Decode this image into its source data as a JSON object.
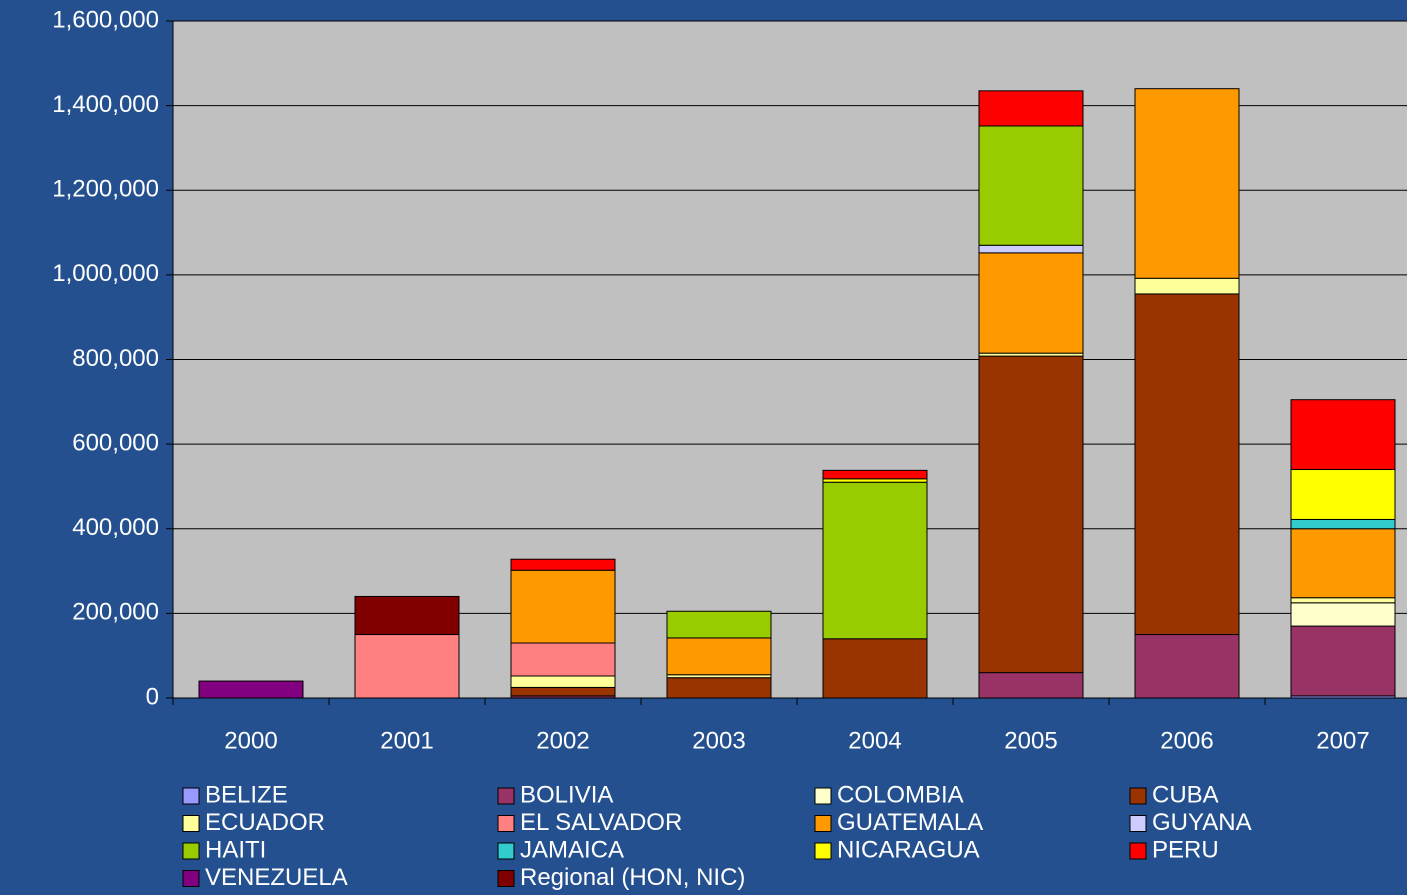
{
  "chart_data": {
    "type": "stacked_bar",
    "categories": [
      "2000",
      "2001",
      "2002",
      "2003",
      "2004",
      "2005",
      "2006",
      "2007"
    ],
    "ylim": [
      0,
      1600000
    ],
    "yticks": [
      0,
      {
        "value": 200000,
        "label": "200,000"
      },
      {
        "value": 400000,
        "label": "400,000"
      },
      {
        "value": 600000,
        "label": "600,000"
      },
      {
        "value": 800000,
        "label": "800,000"
      },
      {
        "value": 1000000,
        "label": "1,000,000"
      },
      {
        "value": 1200000,
        "label": "1,200,000"
      },
      {
        "value": 1400000,
        "label": "1,400,000"
      },
      {
        "value": 1600000,
        "label": "1,600,000"
      }
    ],
    "grid": true,
    "legend": "bottom",
    "series": [
      {
        "name": "BELIZE",
        "color": "#9999ff",
        "values": [
          null,
          null,
          null,
          null,
          null,
          null,
          null,
          5000
        ]
      },
      {
        "name": "BOLIVIA",
        "color": "#993366",
        "values": [
          null,
          null,
          5000,
          null,
          null,
          60000,
          150000,
          165000
        ]
      },
      {
        "name": "COLOMBIA",
        "color": "#ffffcc",
        "values": [
          null,
          null,
          null,
          null,
          null,
          null,
          null,
          55000
        ]
      },
      {
        "name": "CUBA",
        "color": "#993300",
        "values": [
          null,
          null,
          20000,
          48000,
          140000,
          748000,
          805000,
          null
        ]
      },
      {
        "name": "ECUADOR",
        "color": "#ffff99",
        "values": [
          null,
          null,
          27000,
          7000,
          null,
          7000,
          37000,
          12000
        ]
      },
      {
        "name": "EL SALVADOR",
        "color": "#ff8080",
        "values": [
          null,
          150000,
          78000,
          null,
          null,
          null,
          null,
          null
        ]
      },
      {
        "name": "GUATEMALA",
        "color": "#ff9900",
        "values": [
          null,
          null,
          172000,
          87000,
          null,
          237000,
          448000,
          163000
        ]
      },
      {
        "name": "GUYANA",
        "color": "#ccccff",
        "values": [
          null,
          null,
          null,
          null,
          null,
          18000,
          null,
          null
        ]
      },
      {
        "name": "HAITI",
        "color": "#99cc00",
        "values": [
          null,
          null,
          null,
          63000,
          370000,
          282000,
          null,
          null
        ]
      },
      {
        "name": "JAMAICA",
        "color": "#33cccc",
        "values": [
          null,
          null,
          null,
          null,
          null,
          null,
          null,
          22000
        ]
      },
      {
        "name": "NICARAGUA",
        "color": "#ffff00",
        "values": [
          null,
          null,
          null,
          null,
          8000,
          null,
          null,
          118000
        ]
      },
      {
        "name": "PERU",
        "color": "#ff0000",
        "values": [
          null,
          null,
          26000,
          null,
          20000,
          83000,
          null,
          165000
        ]
      },
      {
        "name": "VENEZUELA",
        "color": "#800080",
        "values": [
          40000,
          null,
          null,
          null,
          null,
          null,
          null,
          null
        ]
      },
      {
        "name": "Regional (HON, NIC)",
        "color": "#800000",
        "values": [
          null,
          90000,
          null,
          null,
          null,
          null,
          null,
          null
        ]
      }
    ]
  }
}
